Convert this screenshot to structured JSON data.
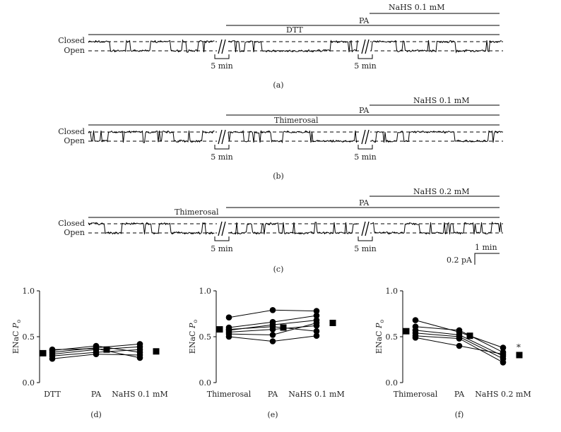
{
  "traces": [
    {
      "id": "a",
      "caption": "(a)",
      "treatment": "DTT",
      "pa_label": "PA",
      "nahs_label": "NaHS 0.1 mM",
      "closed_label": "Closed",
      "open_label": "Open",
      "gap_labels": [
        "5 min",
        "5 min"
      ],
      "scale_bar": null
    },
    {
      "id": "b",
      "caption": "(b)",
      "treatment": "Thimerosal",
      "pa_label": "PA",
      "nahs_label": "NaHS 0.1 mM",
      "closed_label": "Closed",
      "open_label": "Open",
      "gap_labels": [
        "5 min",
        "5 min"
      ],
      "scale_bar": null
    },
    {
      "id": "c",
      "caption": "(c)",
      "treatment": "Thimerosal",
      "pa_label": "PA",
      "nahs_label": "NaHS 0.2 mM",
      "closed_label": "Closed",
      "open_label": "Open",
      "gap_labels": [
        "5 min",
        "5 min"
      ],
      "scale_bar": {
        "time": "1 min",
        "current": "0.2 pA"
      }
    }
  ],
  "chart_data": [
    {
      "type": "scatter",
      "panel": "(d)",
      "ylabel_main": "ENaC ",
      "ylabel_italic": "P",
      "ylabel_sub": "o",
      "ylim": [
        0,
        1
      ],
      "yticks": [
        "0.0",
        "0.5",
        "1.0"
      ],
      "categories": [
        "DTT",
        "PA",
        "NaHS 0.1 mM"
      ],
      "cells": [
        [
          0.26,
          0.31,
          0.3
        ],
        [
          0.29,
          0.33,
          0.36
        ],
        [
          0.31,
          0.36,
          0.39
        ],
        [
          0.33,
          0.38,
          0.42
        ],
        [
          0.35,
          0.4,
          0.33
        ],
        [
          0.36,
          0.37,
          0.27
        ]
      ],
      "means": [
        0.32,
        0.36,
        0.34
      ],
      "significance": ""
    },
    {
      "type": "scatter",
      "panel": "(e)",
      "ylabel_main": "ENaC ",
      "ylabel_italic": "P",
      "ylabel_sub": "o",
      "ylim": [
        0,
        1
      ],
      "yticks": [
        "0.0",
        "0.5",
        "1.0"
      ],
      "categories": [
        "Thimerosal",
        "PA",
        "NaHS 0.1 mM"
      ],
      "cells": [
        [
          0.71,
          0.79,
          0.78
        ],
        [
          0.6,
          0.66,
          0.73
        ],
        [
          0.57,
          0.63,
          0.68
        ],
        [
          0.55,
          0.58,
          0.62
        ],
        [
          0.53,
          0.52,
          0.65
        ],
        [
          0.5,
          0.45,
          0.51
        ],
        [
          0.58,
          0.61,
          0.56
        ]
      ],
      "means": [
        0.58,
        0.6,
        0.65
      ],
      "significance": ""
    },
    {
      "type": "scatter",
      "panel": "(f)",
      "ylabel_main": "ENaC ",
      "ylabel_italic": "P",
      "ylabel_sub": "o",
      "ylim": [
        0,
        1
      ],
      "yticks": [
        "0.0",
        "0.5",
        "1.0"
      ],
      "categories": [
        "Thimerosal",
        "PA",
        "NaHS 0.2 mM"
      ],
      "cells": [
        [
          0.68,
          0.55,
          0.38
        ],
        [
          0.61,
          0.57,
          0.33
        ],
        [
          0.57,
          0.52,
          0.29
        ],
        [
          0.54,
          0.5,
          0.26
        ],
        [
          0.51,
          0.48,
          0.22
        ],
        [
          0.49,
          0.4,
          0.31
        ]
      ],
      "means": [
        0.56,
        0.51,
        0.3
      ],
      "significance": "*"
    }
  ]
}
